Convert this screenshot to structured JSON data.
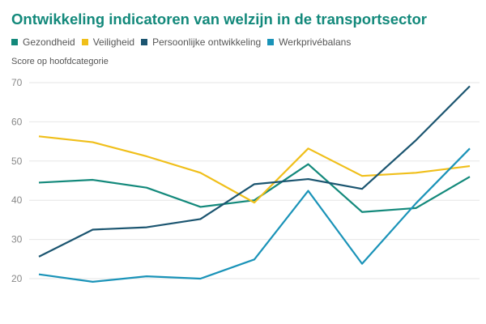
{
  "chart_data": {
    "type": "line",
    "title": "Ontwikkeling indicatoren van welzijn in de transportsector",
    "ylabel": "Score op hoofdcategorie",
    "xlabel": "",
    "ylim": [
      20,
      70
    ],
    "yticks": [
      20,
      30,
      40,
      50,
      60,
      70
    ],
    "grid": true,
    "legend_position": "top-left",
    "x": [
      1,
      2,
      3,
      4,
      5,
      6,
      7,
      8,
      9
    ],
    "series": [
      {
        "name": "Gezondheid",
        "color": "#13897b",
        "values": [
          44.5,
          45.2,
          43.2,
          38.3,
          40.0,
          49.2,
          37.0,
          38.0,
          46.0
        ]
      },
      {
        "name": "Veiligheid",
        "color": "#f0bf1a",
        "values": [
          56.3,
          54.8,
          51.2,
          47.0,
          39.4,
          53.2,
          46.2,
          47.0,
          48.7
        ]
      },
      {
        "name": "Persoonlijke ontwikkeling",
        "color": "#1b5570",
        "values": [
          25.6,
          32.5,
          33.1,
          35.2,
          44.1,
          45.4,
          42.9,
          55.3,
          69.1
        ]
      },
      {
        "name": "Werkprivébalans",
        "color": "#1a93b8",
        "values": [
          21.1,
          19.2,
          20.6,
          20.0,
          24.9,
          42.4,
          23.8,
          39.2,
          53.2
        ]
      }
    ]
  }
}
